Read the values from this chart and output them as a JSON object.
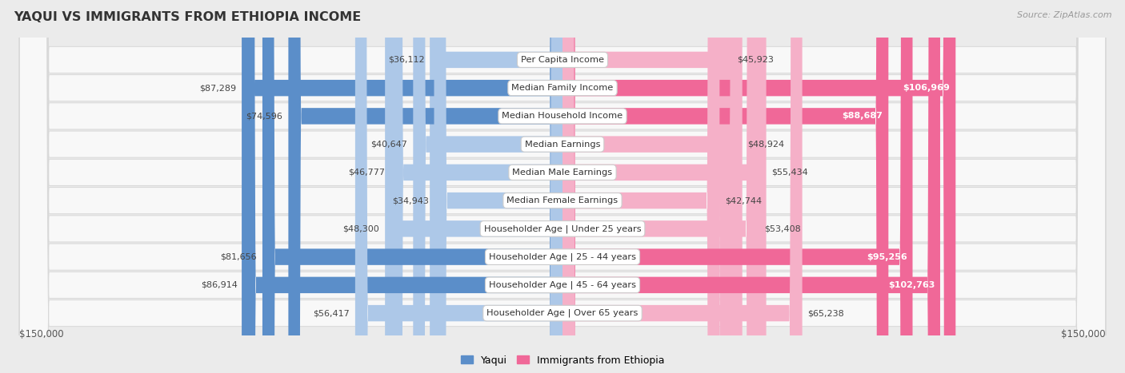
{
  "title": "YAQUI VS IMMIGRANTS FROM ETHIOPIA INCOME",
  "source": "Source: ZipAtlas.com",
  "categories": [
    "Per Capita Income",
    "Median Family Income",
    "Median Household Income",
    "Median Earnings",
    "Median Male Earnings",
    "Median Female Earnings",
    "Householder Age | Under 25 years",
    "Householder Age | 25 - 44 years",
    "Householder Age | 45 - 64 years",
    "Householder Age | Over 65 years"
  ],
  "yaqui_values": [
    36112,
    87289,
    74596,
    40647,
    46777,
    34943,
    48300,
    81656,
    86914,
    56417
  ],
  "ethiopia_values": [
    45923,
    106969,
    88687,
    48924,
    55434,
    42744,
    53408,
    95256,
    102763,
    65238
  ],
  "yaqui_labels": [
    "$36,112",
    "$87,289",
    "$74,596",
    "$40,647",
    "$46,777",
    "$34,943",
    "$48,300",
    "$81,656",
    "$86,914",
    "$56,417"
  ],
  "ethiopia_labels": [
    "$45,923",
    "$106,969",
    "$88,687",
    "$48,924",
    "$55,434",
    "$42,744",
    "$53,408",
    "$95,256",
    "$102,763",
    "$65,238"
  ],
  "yaqui_color_light": "#adc8e8",
  "yaqui_color_dark": "#5b8ec9",
  "ethiopia_color_light": "#f5b0c8",
  "ethiopia_color_dark": "#f06898",
  "max_value": 150000,
  "bg_color": "#ebebeb",
  "row_bg": "#f8f8f8",
  "eth_inside_threshold": 75000,
  "legend_yaqui": "Yaqui",
  "legend_ethiopia": "Immigrants from Ethiopia",
  "xlabel_left": "$150,000",
  "xlabel_right": "$150,000",
  "yaqui_inside": [
    false,
    false,
    false,
    false,
    false,
    false,
    false,
    false,
    false,
    false
  ],
  "eth_inside": [
    false,
    true,
    true,
    false,
    false,
    false,
    false,
    true,
    true,
    false
  ]
}
